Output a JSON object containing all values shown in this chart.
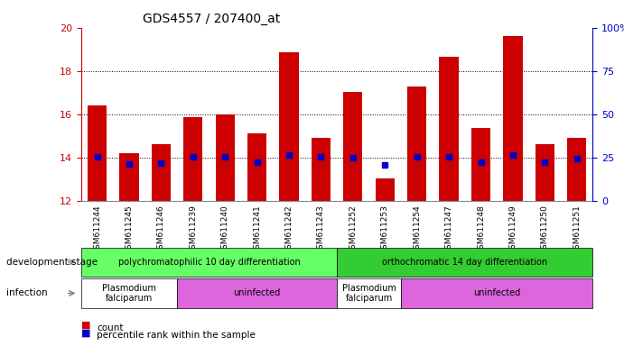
{
  "title": "GDS4557 / 207400_at",
  "samples": [
    "GSM611244",
    "GSM611245",
    "GSM611246",
    "GSM611239",
    "GSM611240",
    "GSM611241",
    "GSM611242",
    "GSM611243",
    "GSM611252",
    "GSM611253",
    "GSM611254",
    "GSM611247",
    "GSM611248",
    "GSM611249",
    "GSM611250",
    "GSM611251"
  ],
  "counts": [
    16.4,
    14.2,
    14.6,
    15.85,
    16.0,
    15.1,
    18.85,
    14.9,
    17.05,
    13.05,
    17.3,
    18.65,
    15.35,
    19.6,
    14.6,
    14.9
  ],
  "percentile_ranks": [
    25.5,
    21.0,
    21.5,
    25.5,
    25.5,
    22.5,
    26.5,
    25.5,
    25.0,
    20.5,
    25.5,
    25.5,
    22.0,
    26.5,
    22.0,
    24.5
  ],
  "ymin": 12,
  "ymax": 20,
  "bar_color": "#cc0000",
  "dot_color": "#0000cc",
  "background_color": "#ffffff",
  "axis_left_color": "#cc0000",
  "axis_right_color": "#0000cc",
  "dev_stage_1_label": "polychromatophilic 10 day differentiation",
  "dev_stage_2_label": "orthochromatic 14 day differentiation",
  "dev_stage_1_color": "#66ff66",
  "dev_stage_2_color": "#33cc33",
  "infect_1a_label": "Plasmodium\nfalciparum",
  "infect_1b_label": "uninfected",
  "infect_2a_label": "Plasmodium\nfalciparum",
  "infect_2b_label": "uninfected",
  "infect_color_pf": "#ffffff",
  "infect_color_uninf": "#dd66dd",
  "infect_1a_span": [
    0,
    3
  ],
  "infect_1b_span": [
    3,
    8
  ],
  "infect_2a_span": [
    8,
    10
  ],
  "infect_2b_span": [
    10,
    16
  ],
  "dev_stage_1_span": [
    0,
    8
  ],
  "dev_stage_2_span": [
    8,
    16
  ],
  "legend_count_label": "count",
  "legend_pct_label": "percentile rank within the sample",
  "dev_stage_label": "development stage",
  "infection_label": "infection"
}
